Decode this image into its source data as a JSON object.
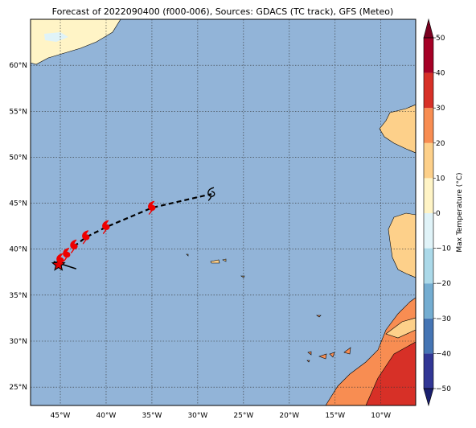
{
  "title": "Forecast of 2022090400 (f000-006), Sources: GDACS (TC track), GFS (Meteo)",
  "lonlim": [
    -48.25,
    -6.2
  ],
  "latlim": [
    23,
    65
  ],
  "lat_ticks": [
    {
      "value": 25,
      "label": "25°N"
    },
    {
      "value": 30,
      "label": "30°N"
    },
    {
      "value": 35,
      "label": "35°N"
    },
    {
      "value": 40,
      "label": "40°N"
    },
    {
      "value": 45,
      "label": "45°N"
    },
    {
      "value": 50,
      "label": "50°N"
    },
    {
      "value": 55,
      "label": "55°N"
    },
    {
      "value": 60,
      "label": "60°N"
    }
  ],
  "lon_ticks": [
    {
      "value": -45,
      "label": "45°W"
    },
    {
      "value": -40,
      "label": "40°W"
    },
    {
      "value": -35,
      "label": "35°W"
    },
    {
      "value": -30,
      "label": "30°W"
    },
    {
      "value": -25,
      "label": "25°W"
    },
    {
      "value": -20,
      "label": "20°W"
    },
    {
      "value": -15,
      "label": "15°W"
    },
    {
      "value": -10,
      "label": "10°W"
    }
  ],
  "colorbar": {
    "label": "Max Temperature (°C)",
    "lim": [
      -50,
      50
    ],
    "ticks": [
      {
        "value": -50,
        "label": "−50"
      },
      {
        "value": -40,
        "label": "−40"
      },
      {
        "value": -30,
        "label": "−30"
      },
      {
        "value": -20,
        "label": "−20"
      },
      {
        "value": -10,
        "label": "−10"
      },
      0,
      10,
      20,
      30,
      40,
      50
    ],
    "colors": [
      "#313695",
      "#4575b4",
      "#74add1",
      "#abd9e9",
      "#e0f3f8",
      "#fff4c6",
      "#fdd08a",
      "#f88d52",
      "#d73027",
      "#a50026"
    ],
    "under": "#1a1f6e",
    "over": "#7a0020"
  },
  "track": [
    {
      "lon": -45.2,
      "lat": 38.3
    },
    {
      "lon": -45.0,
      "lat": 38.8
    },
    {
      "lon": -44.3,
      "lat": 39.4
    },
    {
      "lon": -43.5,
      "lat": 40.3
    },
    {
      "lon": -42.2,
      "lat": 41.3
    },
    {
      "lon": -40.0,
      "lat": 42.4
    },
    {
      "lon": -35.0,
      "lat": 44.5
    },
    {
      "lon": -28.5,
      "lat": 46.0
    }
  ]
}
